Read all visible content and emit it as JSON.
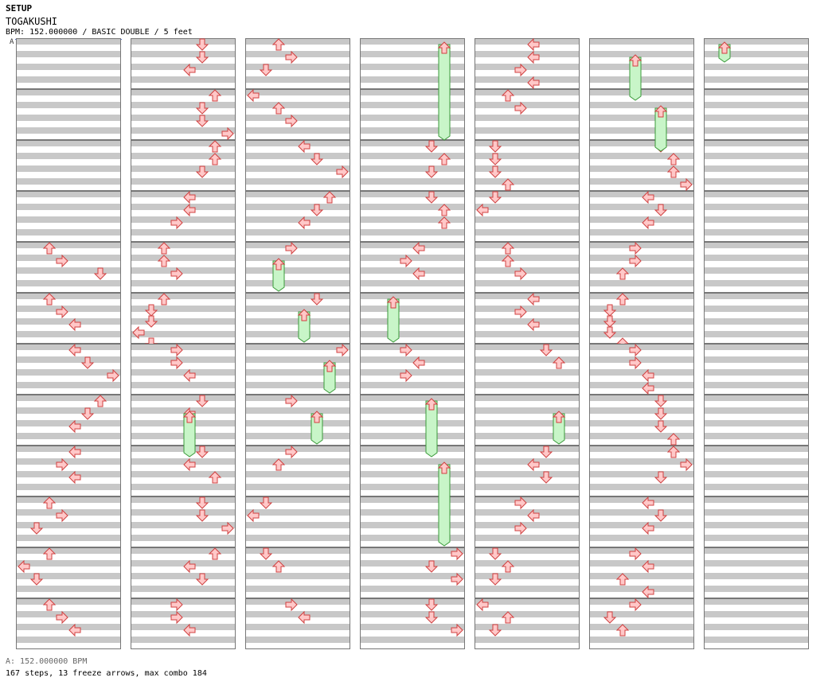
{
  "header": {
    "section": "SETUP",
    "song_title": "TOGAKUSHI",
    "meta": "BPM: 152.000000 / BASIC DOUBLE / 5 feet",
    "bpm_marker": "A"
  },
  "footer": {
    "bpm_legend": "A: 152.000000 BPM",
    "summary": "167 steps, 13 freeze arrows, max combo 184"
  },
  "colors": {
    "arrow_fill": "#ffc8c8",
    "arrow_stroke": "#d04040",
    "freeze_fill": "#c8f5c8",
    "freeze_stroke": "#3a9a3a",
    "stripe": "#c8c8c8",
    "bpm_line": "#4a6fe0"
  },
  "columns": [
    {
      "measures": [
        {
          "arrows": []
        },
        {
          "arrows": []
        },
        {
          "arrows": []
        },
        {
          "arrows": []
        },
        {
          "arrows": [
            [
              2,
              "U"
            ],
            [
              3,
              "R"
            ],
            [
              6,
              "D"
            ]
          ]
        },
        {
          "arrows": [
            [
              2,
              "U"
            ],
            [
              3,
              "R"
            ],
            [
              4,
              "L"
            ]
          ]
        },
        {
          "arrows": [
            [
              4,
              "L"
            ],
            [
              5,
              "D"
            ],
            [
              7,
              "R"
            ]
          ]
        },
        {
          "arrows": [
            [
              6,
              "U"
            ],
            [
              5,
              "D"
            ],
            [
              4,
              "L"
            ]
          ]
        },
        {
          "arrows": [
            [
              4,
              "L"
            ],
            [
              3,
              "R"
            ],
            [
              4,
              "L"
            ]
          ]
        },
        {
          "arrows": [
            [
              2,
              "U"
            ],
            [
              3,
              "R"
            ],
            [
              1,
              "D"
            ]
          ]
        },
        {
          "arrows": [
            [
              2,
              "U"
            ],
            [
              0,
              "L"
            ],
            [
              1,
              "D"
            ]
          ]
        },
        {
          "arrows": [
            [
              2,
              "U"
            ],
            [
              3,
              "R"
            ],
            [
              4,
              "L"
            ]
          ]
        }
      ]
    },
    {
      "measures": [
        {
          "arrows": [
            [
              5,
              "D"
            ],
            [
              5,
              "D"
            ],
            [
              4,
              "L"
            ]
          ]
        },
        {
          "arrows": [
            [
              6,
              "U"
            ],
            [
              5,
              "D"
            ],
            [
              5,
              "D"
            ],
            [
              7,
              "R"
            ]
          ]
        },
        {
          "arrows": [
            [
              6,
              "U"
            ],
            [
              6,
              "U"
            ],
            [
              5,
              "D"
            ]
          ]
        },
        {
          "arrows": [
            [
              4,
              "L"
            ],
            [
              4,
              "L"
            ],
            [
              3,
              "R"
            ]
          ]
        },
        {
          "arrows": [
            [
              2,
              "U"
            ],
            [
              2,
              "U"
            ],
            [
              3,
              "R"
            ]
          ]
        },
        {
          "arrows": [
            [
              2,
              "U"
            ],
            [
              1,
              "D"
            ],
            [
              1,
              "D"
            ],
            [
              0,
              "L"
            ],
            [
              1,
              "D"
            ]
          ]
        },
        {
          "arrows": [
            [
              3,
              "R"
            ],
            [
              3,
              "R"
            ],
            [
              4,
              "L"
            ]
          ]
        },
        {
          "arrows": [
            [
              5,
              "D"
            ],
            [
              4,
              "L"
            ]
          ]
        },
        {
          "arrows": [
            [
              5,
              "D"
            ],
            [
              4,
              "L"
            ],
            [
              6,
              "U"
            ]
          ]
        },
        {
          "arrows": [
            [
              5,
              "D"
            ],
            [
              5,
              "D"
            ],
            [
              7,
              "R"
            ]
          ]
        },
        {
          "arrows": [
            [
              6,
              "U"
            ],
            [
              4,
              "L"
            ],
            [
              5,
              "D"
            ]
          ]
        },
        {
          "arrows": [
            [
              3,
              "R"
            ],
            [
              3,
              "R"
            ],
            [
              4,
              "L"
            ]
          ]
        }
      ]
    },
    {
      "measures": [
        {
          "arrows": [
            [
              2,
              "U"
            ],
            [
              3,
              "R"
            ],
            [
              1,
              "D"
            ]
          ]
        },
        {
          "arrows": [
            [
              0,
              "L"
            ],
            [
              2,
              "U"
            ],
            [
              3,
              "R"
            ]
          ]
        },
        {
          "arrows": [
            [
              4,
              "L"
            ],
            [
              5,
              "D"
            ],
            [
              7,
              "R"
            ]
          ]
        },
        {
          "arrows": [
            [
              6,
              "U"
            ],
            [
              5,
              "D"
            ],
            [
              4,
              "L"
            ]
          ]
        },
        {
          "arrows": [
            [
              3,
              "R"
            ]
          ]
        },
        {
          "arrows": [
            [
              5,
              "D"
            ]
          ]
        },
        {
          "arrows": [
            [
              7,
              "R"
            ]
          ]
        },
        {
          "arrows": [
            [
              3,
              "R"
            ]
          ]
        },
        {
          "arrows": [
            [
              3,
              "R"
            ],
            [
              2,
              "U"
            ]
          ]
        },
        {
          "arrows": [
            [
              1,
              "D"
            ],
            [
              0,
              "L"
            ]
          ]
        },
        {
          "arrows": [
            [
              1,
              "D"
            ],
            [
              2,
              "U"
            ]
          ]
        },
        {
          "arrows": [
            [
              3,
              "R"
            ],
            [
              4,
              "L"
            ]
          ]
        }
      ]
    },
    {
      "measures": [
        {
          "arrows": []
        },
        {
          "arrows": []
        },
        {
          "arrows": [
            [
              5,
              "D"
            ],
            [
              6,
              "U"
            ],
            [
              5,
              "D"
            ]
          ]
        },
        {
          "arrows": [
            [
              5,
              "D"
            ],
            [
              6,
              "U"
            ],
            [
              6,
              "U"
            ]
          ]
        },
        {
          "arrows": [
            [
              4,
              "L"
            ],
            [
              3,
              "R"
            ],
            [
              4,
              "L"
            ]
          ]
        },
        {
          "arrows": []
        },
        {
          "arrows": [
            [
              3,
              "R"
            ],
            [
              4,
              "L"
            ],
            [
              3,
              "R"
            ]
          ]
        },
        {
          "arrows": []
        },
        {
          "arrows": []
        },
        {
          "arrows": []
        },
        {
          "arrows": [
            [
              7,
              "R"
            ],
            [
              5,
              "D"
            ],
            [
              7,
              "R"
            ]
          ]
        },
        {
          "arrows": [
            [
              5,
              "D"
            ],
            [
              5,
              "D"
            ],
            [
              7,
              "R"
            ]
          ]
        }
      ]
    },
    {
      "measures": [
        {
          "arrows": [
            [
              4,
              "L"
            ],
            [
              4,
              "L"
            ],
            [
              3,
              "R"
            ],
            [
              4,
              "L"
            ]
          ]
        },
        {
          "arrows": [
            [
              2,
              "U"
            ],
            [
              3,
              "R"
            ]
          ]
        },
        {
          "arrows": [
            [
              1,
              "D"
            ],
            [
              1,
              "D"
            ],
            [
              1,
              "D"
            ],
            [
              2,
              "U"
            ]
          ]
        },
        {
          "arrows": [
            [
              1,
              "D"
            ],
            [
              0,
              "L"
            ]
          ]
        },
        {
          "arrows": [
            [
              2,
              "U"
            ],
            [
              2,
              "U"
            ],
            [
              3,
              "R"
            ]
          ]
        },
        {
          "arrows": [
            [
              4,
              "L"
            ],
            [
              3,
              "R"
            ],
            [
              4,
              "L"
            ]
          ]
        },
        {
          "arrows": [
            [
              5,
              "D"
            ],
            [
              6,
              "U"
            ]
          ]
        },
        {
          "arrows": []
        },
        {
          "arrows": [
            [
              5,
              "D"
            ],
            [
              4,
              "L"
            ],
            [
              5,
              "D"
            ]
          ]
        },
        {
          "arrows": [
            [
              3,
              "R"
            ],
            [
              4,
              "L"
            ],
            [
              3,
              "R"
            ]
          ]
        },
        {
          "arrows": [
            [
              1,
              "D"
            ],
            [
              2,
              "U"
            ],
            [
              1,
              "D"
            ]
          ]
        },
        {
          "arrows": [
            [
              0,
              "L"
            ],
            [
              2,
              "U"
            ],
            [
              1,
              "D"
            ]
          ]
        }
      ]
    },
    {
      "measures": [
        {
          "arrows": []
        },
        {
          "arrows": []
        },
        {
          "arrows": [
            [
              5,
              "D"
            ],
            [
              6,
              "U"
            ],
            [
              6,
              "U"
            ],
            [
              7,
              "R"
            ]
          ]
        },
        {
          "arrows": [
            [
              4,
              "L"
            ],
            [
              5,
              "D"
            ],
            [
              4,
              "L"
            ]
          ]
        },
        {
          "arrows": [
            [
              3,
              "R"
            ],
            [
              3,
              "R"
            ],
            [
              2,
              "U"
            ]
          ]
        },
        {
          "arrows": [
            [
              2,
              "U"
            ],
            [
              1,
              "D"
            ],
            [
              1,
              "D"
            ],
            [
              1,
              "D"
            ],
            [
              2,
              "U"
            ]
          ]
        },
        {
          "arrows": [
            [
              3,
              "R"
            ],
            [
              3,
              "R"
            ],
            [
              4,
              "L"
            ],
            [
              4,
              "L"
            ]
          ]
        },
        {
          "arrows": [
            [
              5,
              "D"
            ],
            [
              5,
              "D"
            ],
            [
              5,
              "D"
            ],
            [
              6,
              "U"
            ]
          ]
        },
        {
          "arrows": [
            [
              6,
              "U"
            ],
            [
              7,
              "R"
            ],
            [
              5,
              "D"
            ]
          ]
        },
        {
          "arrows": [
            [
              4,
              "L"
            ],
            [
              5,
              "D"
            ],
            [
              4,
              "L"
            ]
          ]
        },
        {
          "arrows": [
            [
              3,
              "R"
            ],
            [
              4,
              "L"
            ],
            [
              2,
              "U"
            ],
            [
              4,
              "L"
            ]
          ]
        },
        {
          "arrows": [
            [
              3,
              "R"
            ],
            [
              1,
              "D"
            ],
            [
              2,
              "U"
            ]
          ]
        }
      ]
    },
    {
      "measures": [
        {
          "arrows": []
        },
        {
          "arrows": []
        },
        {
          "arrows": []
        },
        {
          "arrows": []
        },
        {
          "arrows": []
        },
        {
          "arrows": []
        },
        {
          "arrows": []
        },
        {
          "arrows": []
        },
        {
          "arrows": []
        },
        {
          "arrows": []
        },
        {
          "arrows": []
        },
        {
          "arrows": []
        }
      ]
    }
  ]
}
